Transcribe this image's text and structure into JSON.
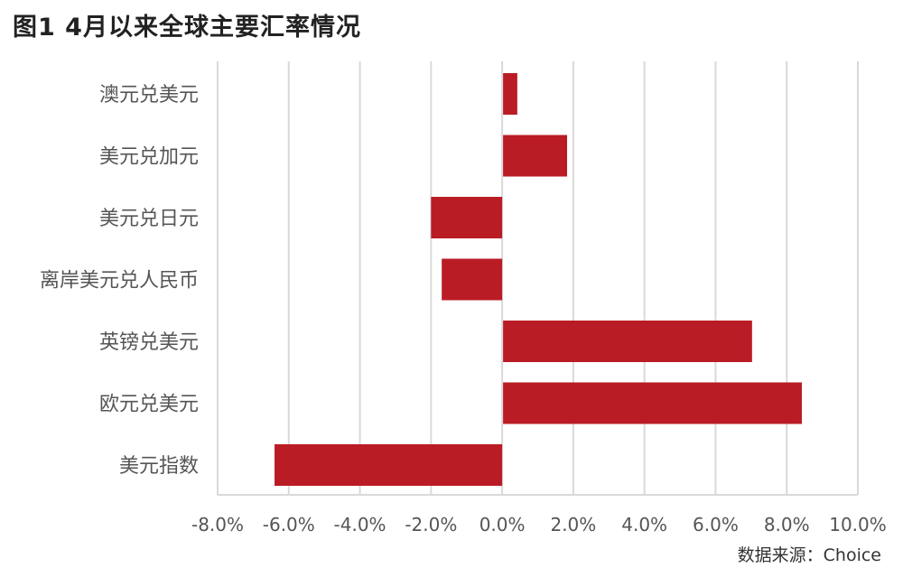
{
  "title": "图1  4月以来全球主要汇率情况",
  "source": "数据来源：Choice",
  "colors": {
    "bar": "#BA1C25",
    "grid": "#D9D9D9",
    "text": "#555555"
  },
  "chart_data": {
    "type": "bar",
    "orientation": "horizontal",
    "categories": [
      "澳元兑美元",
      "美元兑加元",
      "美元兑日元",
      "离岸美元兑人民币",
      "英镑兑美元",
      "欧元兑美元",
      "美元指数"
    ],
    "values": [
      0.4,
      1.8,
      -2.0,
      -1.7,
      7.0,
      8.4,
      -6.4
    ],
    "xlim": [
      -8,
      10
    ],
    "xticks": [
      -8,
      -6,
      -4,
      -2,
      0,
      2,
      4,
      6,
      8,
      10
    ],
    "tick_labels": [
      "-8.0%",
      "-6.0%",
      "-4.0%",
      "-2.0%",
      "0.0%",
      "2.0%",
      "4.0%",
      "6.0%",
      "8.0%",
      "10.0%"
    ],
    "grid": true,
    "legend": false
  }
}
